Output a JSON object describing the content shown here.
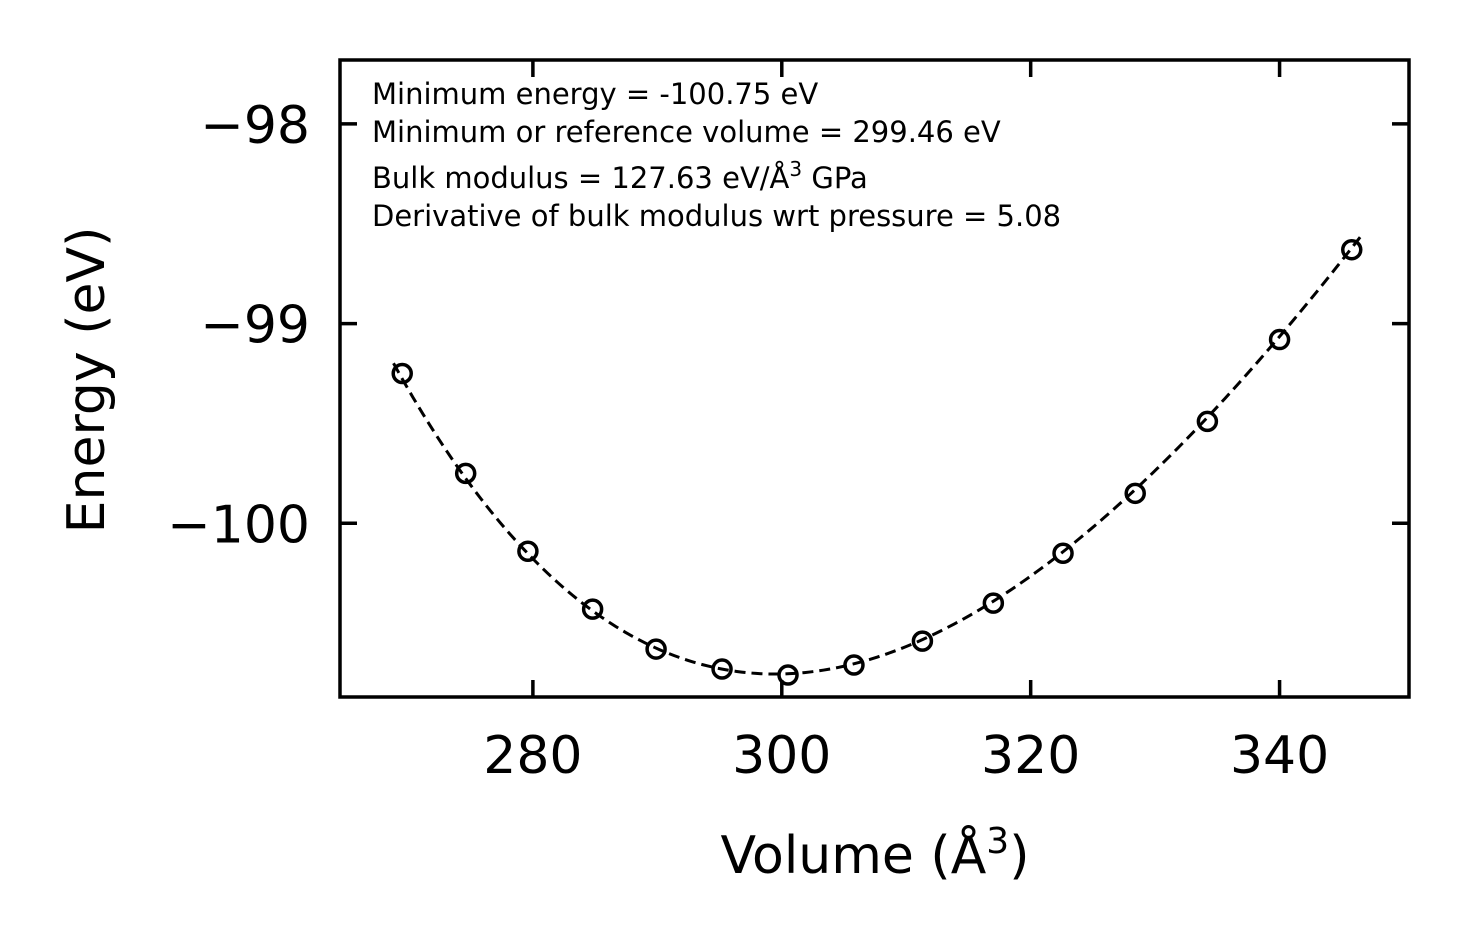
{
  "chart_data": {
    "type": "scatter",
    "xlabel": "Volume (Å",
    "xlabel_sup": "3",
    "xlabel_end": ")",
    "ylabel": "Energy (eV)",
    "xlim": [
      264.5,
      350.4
    ],
    "ylim": [
      -100.87,
      -97.68
    ],
    "xticks": [
      280,
      300,
      320,
      340
    ],
    "xtick_labels": [
      "280",
      "300",
      "320",
      "340"
    ],
    "yticks": [
      -98,
      -99,
      -100
    ],
    "ytick_labels": [
      "−98",
      "−99",
      "−100"
    ],
    "grid": false,
    "series": [
      {
        "name": "data",
        "style": "open-circle",
        "x": [
          269.5,
          274.6,
          279.6,
          284.8,
          289.9,
          295.2,
          300.5,
          305.8,
          311.3,
          317.0,
          322.6,
          328.4,
          334.2,
          340.0,
          345.8
        ],
        "y": [
          -99.25,
          -99.75,
          -100.14,
          -100.43,
          -100.63,
          -100.73,
          -100.76,
          -100.71,
          -100.59,
          -100.4,
          -100.15,
          -99.85,
          -99.49,
          -99.08,
          -98.63
        ]
      },
      {
        "name": "fit",
        "style": "dashed-line",
        "equation": "birch-murnaghan",
        "E0": -100.755,
        "V0": 299.46,
        "B0": 127.63,
        "B0_prime": 5.08,
        "x_range": [
          268.8,
          346.5
        ]
      }
    ],
    "annotations": [
      {
        "text": "Minimum energy = -100.75 eV"
      },
      {
        "text": "Minimum or reference volume = 299.46 eV"
      },
      {
        "text": "Bulk modulus = 127.63 eV/Å",
        "sup": "3",
        "tail": " GPa"
      },
      {
        "text": "Derivative of bulk modulus wrt pressure = 5.08"
      }
    ]
  }
}
